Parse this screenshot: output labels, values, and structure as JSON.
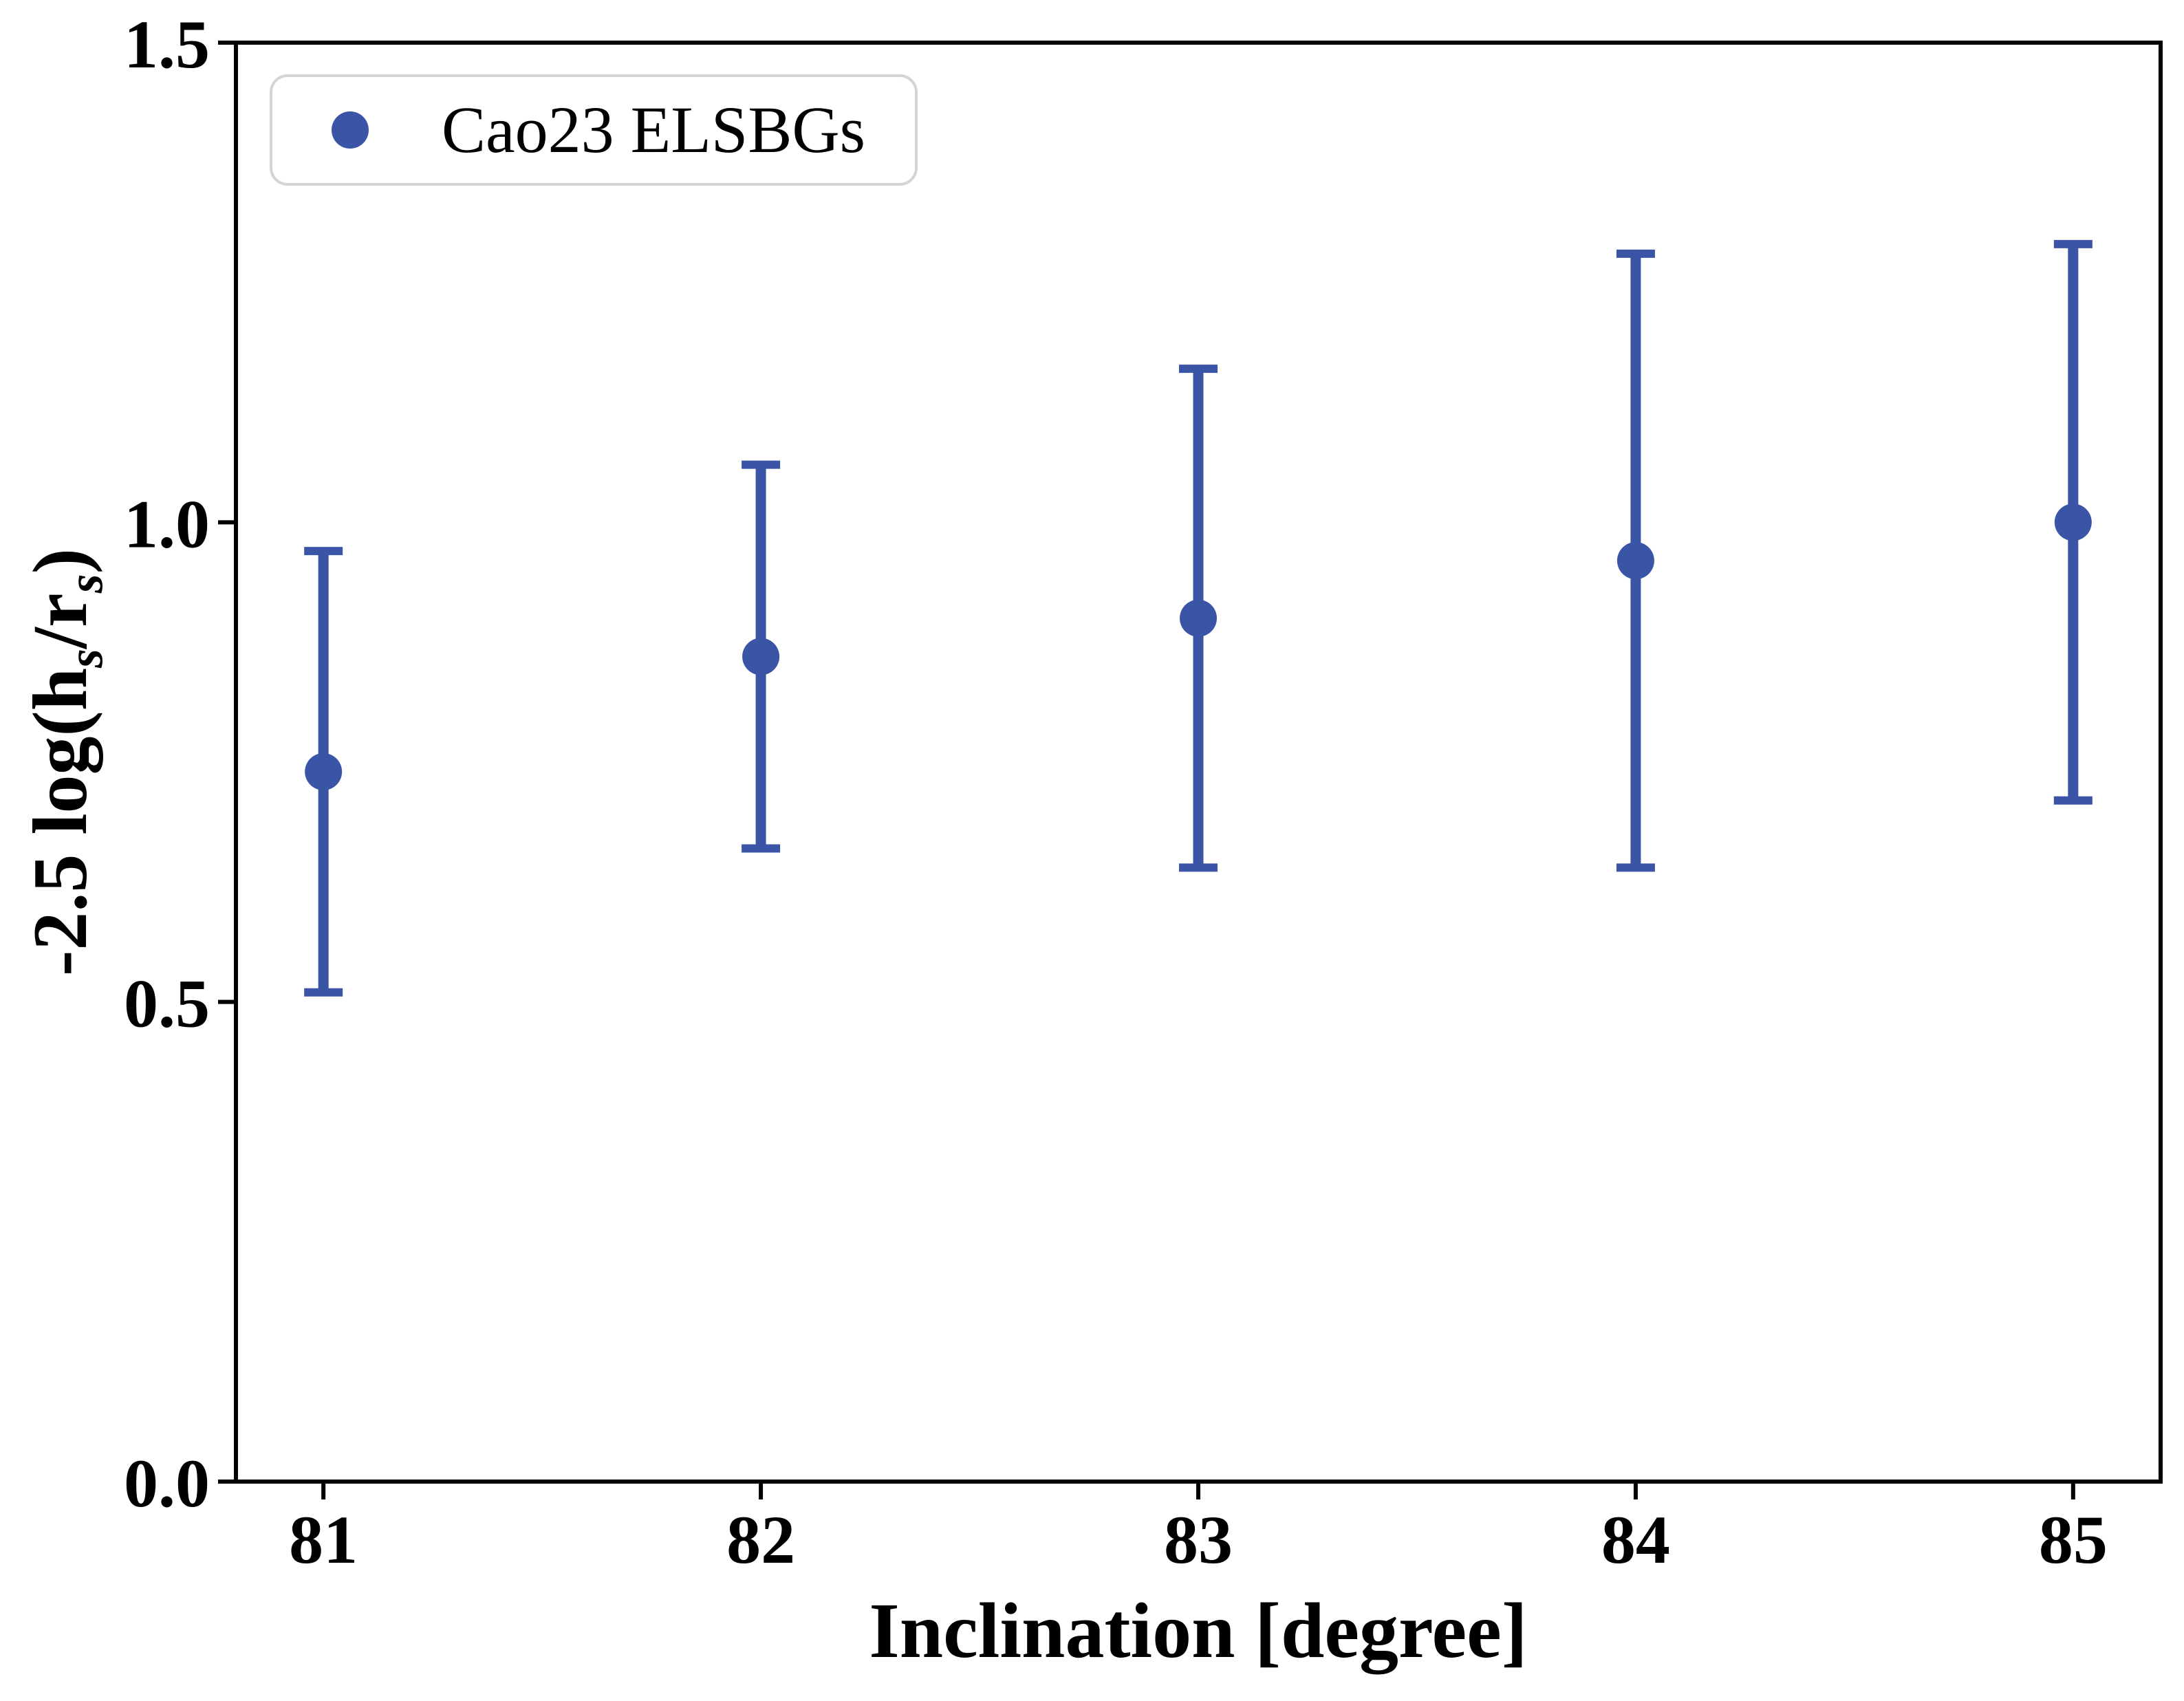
{
  "figure": {
    "background_color": "#ffffff",
    "text_color": "#000000",
    "accent_color": "#3a55a5"
  },
  "legend": {
    "label": "Cao23 ELSBGs",
    "marker": "circle",
    "marker_color": "#3a55a5",
    "position": "upper left",
    "border_color": "#d4d4d4"
  },
  "axes": {
    "xlabel": "Inclination [degree]",
    "ylabel_plain": "-2.5 log(h_s/r_s)",
    "ylabel_parts": [
      "-2.5 log(h",
      "s",
      "/r",
      "s",
      ")"
    ]
  },
  "chart_data": {
    "type": "scatter",
    "title": "",
    "xlabel": "Inclination [degree]",
    "ylabel": "-2.5 log(h_s/r_s)",
    "xlim": [
      80.8,
      85.2
    ],
    "ylim": [
      0.0,
      1.5
    ],
    "xticks": [
      81,
      82,
      83,
      84,
      85
    ],
    "xtick_labels": [
      "81",
      "82",
      "83",
      "84",
      "85"
    ],
    "yticks": [
      0.0,
      0.5,
      1.0,
      1.5
    ],
    "ytick_labels": [
      "0.0",
      "0.5",
      "1.0",
      "1.5"
    ],
    "grid": false,
    "legend_position": "upper left",
    "series": [
      {
        "name": "Cao23 ELSBGs",
        "color": "#3a55a5",
        "marker": "circle",
        "error_caps": true,
        "x": [
          81,
          82,
          83,
          84,
          85
        ],
        "y": [
          0.74,
          0.86,
          0.9,
          0.96,
          1.0
        ],
        "yerr": [
          0.23,
          0.2,
          0.26,
          0.32,
          0.29
        ]
      }
    ]
  }
}
